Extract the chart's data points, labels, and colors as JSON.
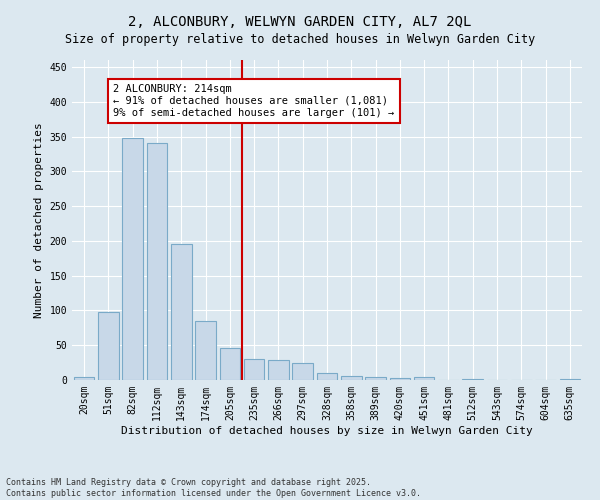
{
  "title": "2, ALCONBURY, WELWYN GARDEN CITY, AL7 2QL",
  "subtitle": "Size of property relative to detached houses in Welwyn Garden City",
  "xlabel": "Distribution of detached houses by size in Welwyn Garden City",
  "ylabel": "Number of detached properties",
  "bar_labels": [
    "20sqm",
    "51sqm",
    "82sqm",
    "112sqm",
    "143sqm",
    "174sqm",
    "205sqm",
    "235sqm",
    "266sqm",
    "297sqm",
    "328sqm",
    "358sqm",
    "389sqm",
    "420sqm",
    "451sqm",
    "481sqm",
    "512sqm",
    "543sqm",
    "574sqm",
    "604sqm",
    "635sqm"
  ],
  "bar_values": [
    5,
    98,
    348,
    340,
    196,
    85,
    46,
    30,
    29,
    25,
    10,
    6,
    5,
    3,
    5,
    0,
    2,
    0,
    0,
    0,
    1
  ],
  "bar_color": "#c8d8e8",
  "bar_edgecolor": "#7aaac8",
  "vline_x": 6.5,
  "vline_color": "#cc0000",
  "annotation_text": "2 ALCONBURY: 214sqm\n← 91% of detached houses are smaller (1,081)\n9% of semi-detached houses are larger (101) →",
  "annotation_box_color": "#ffffff",
  "annotation_box_edgecolor": "#cc0000",
  "ylim": [
    0,
    460
  ],
  "yticks": [
    0,
    50,
    100,
    150,
    200,
    250,
    300,
    350,
    400,
    450
  ],
  "background_color": "#dce8f0",
  "plot_bg_color": "#dce8f0",
  "footer_text": "Contains HM Land Registry data © Crown copyright and database right 2025.\nContains public sector information licensed under the Open Government Licence v3.0.",
  "title_fontsize": 10,
  "subtitle_fontsize": 8.5,
  "xlabel_fontsize": 8,
  "ylabel_fontsize": 8,
  "tick_fontsize": 7,
  "annotation_fontsize": 7.5,
  "footer_fontsize": 6
}
